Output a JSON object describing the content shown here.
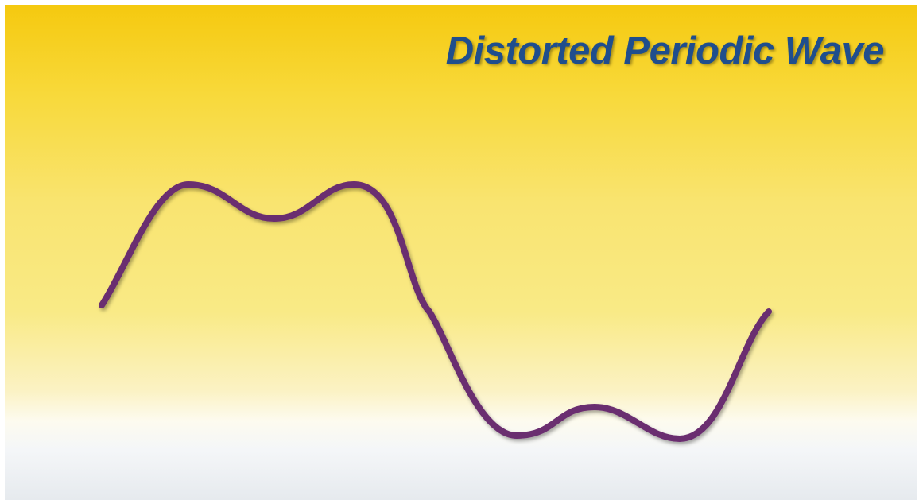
{
  "slide": {
    "title": "Distorted Periodic Wave"
  },
  "colors": {
    "title": "#1f4e8d",
    "axes": "#595959",
    "wave": "#6b2d6f",
    "background_top": "#f5c90f",
    "background_bottom": "#e6eaee"
  },
  "diagram": {
    "elements": [
      "y-axis",
      "x-axis",
      "distorted-wave"
    ]
  }
}
